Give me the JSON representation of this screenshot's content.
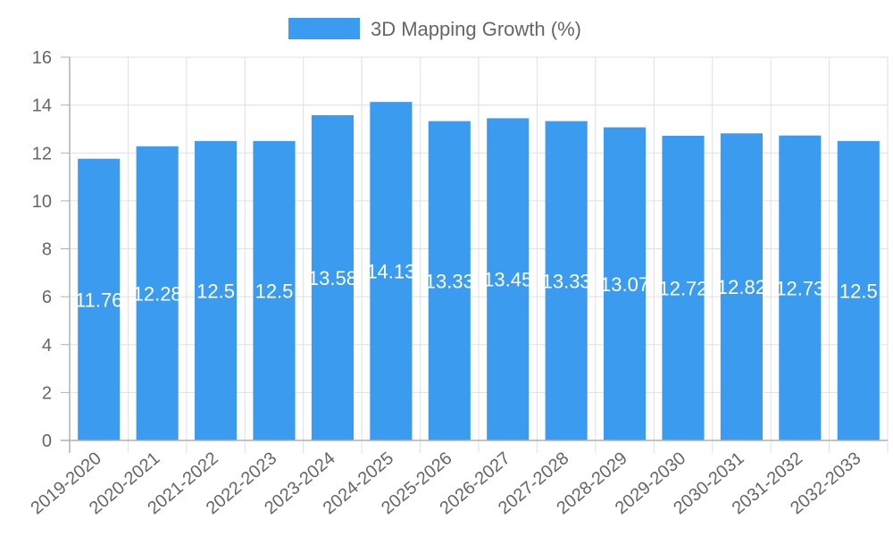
{
  "chart_data": {
    "type": "bar",
    "title": "",
    "xlabel": "",
    "ylabel": "",
    "ylim": [
      0,
      16
    ],
    "yticks": [
      0,
      2,
      4,
      6,
      8,
      10,
      12,
      14,
      16
    ],
    "grid": true,
    "legend_position": "top",
    "categories": [
      "2019-2020",
      "2020-2021",
      "2021-2022",
      "2022-2023",
      "2023-2024",
      "2024-2025",
      "2025-2026",
      "2026-2027",
      "2027-2028",
      "2028-2029",
      "2029-2030",
      "2030-2031",
      "2031-2032",
      "2032-2033"
    ],
    "series": [
      {
        "name": "3D Mapping Growth (%)",
        "color": "#3a9bef",
        "values": [
          11.76,
          12.28,
          12.5,
          12.5,
          13.58,
          14.13,
          13.33,
          13.45,
          13.33,
          13.07,
          12.72,
          12.82,
          12.73,
          12.5
        ],
        "data_labels": [
          "11.76",
          "12.28",
          "12.5",
          "12.5",
          "13.58",
          "14.13",
          "13.33",
          "13.45",
          "13.33",
          "13.07",
          "12.72",
          "12.82",
          "12.73",
          "12.5"
        ]
      }
    ]
  },
  "legend": {
    "label": "3D Mapping Growth (%)",
    "swatch_color": "#3a9bef"
  },
  "colors": {
    "bar": "#3a9bef",
    "grid": "#e0e0e0",
    "axis": "#b0b0b0",
    "text": "#666666",
    "data_label": "#ffffff"
  }
}
